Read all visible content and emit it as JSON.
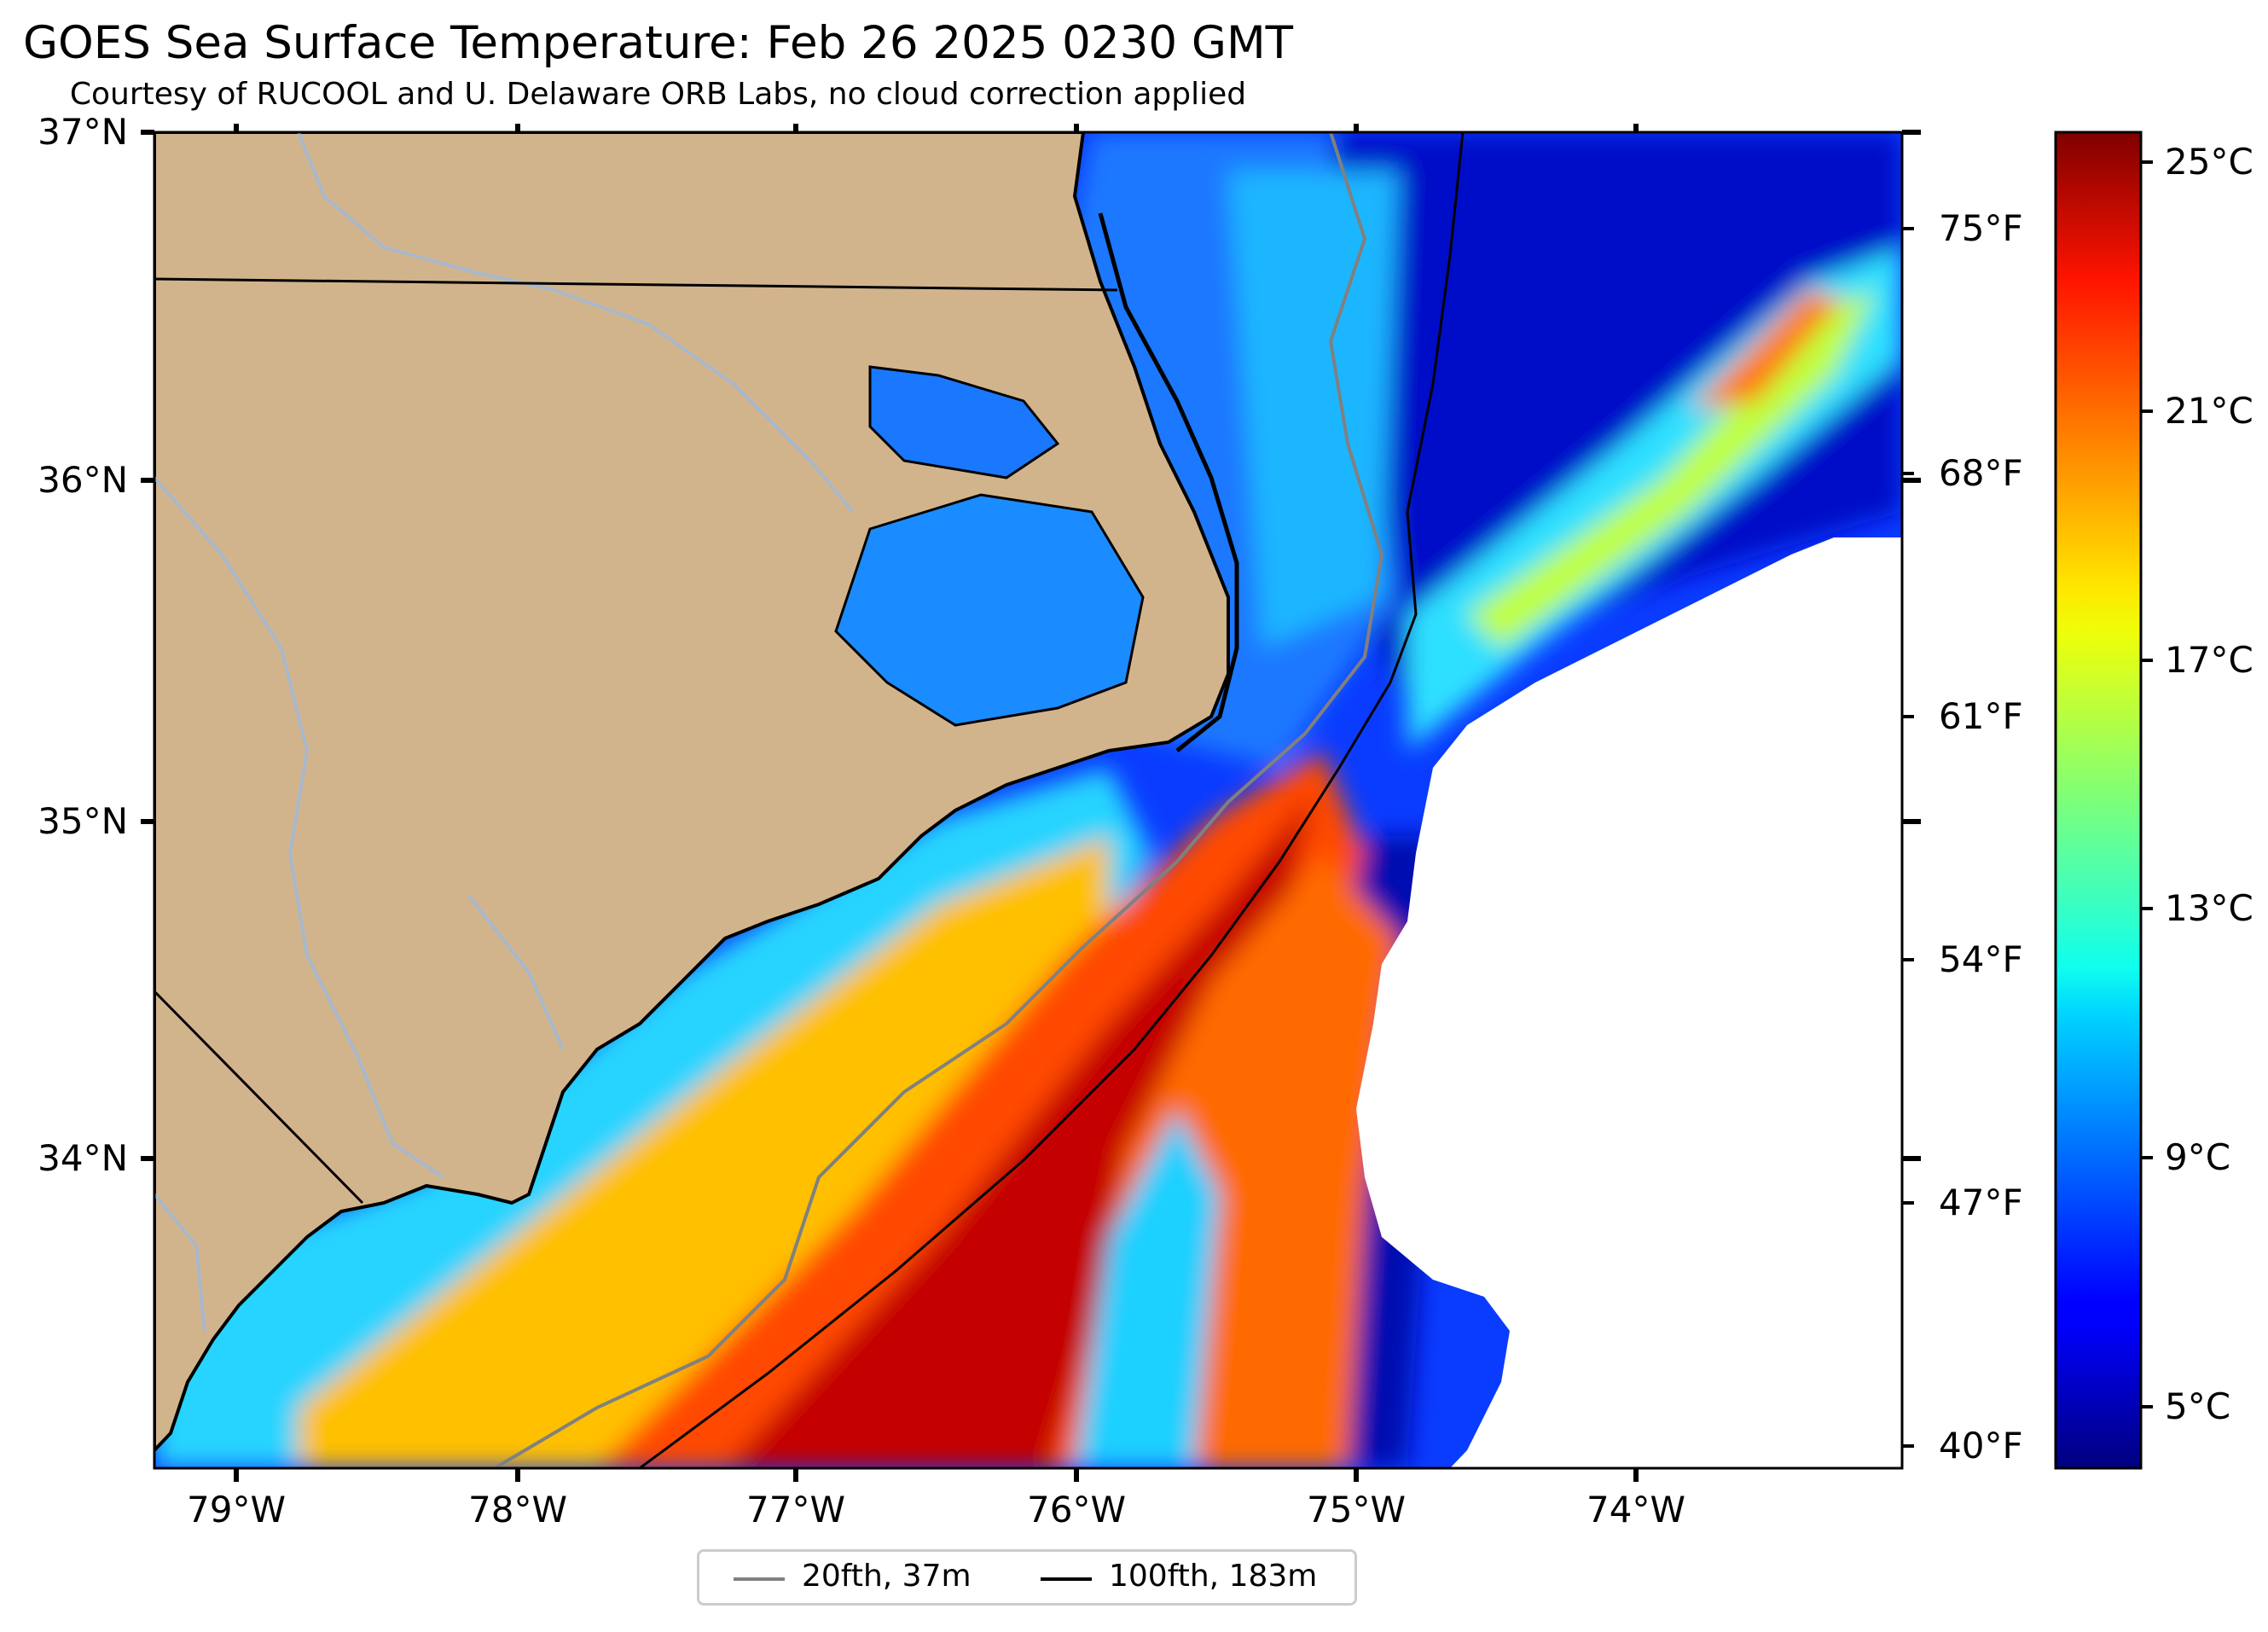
{
  "title": "GOES Sea Surface Temperature: Feb 26 2025 0230 GMT",
  "subtitle": "Courtesy of RUCOOL and U. Delaware ORB Labs, no cloud correction applied",
  "lat_labels": [
    "37°N",
    "36°N",
    "35°N",
    "34°N"
  ],
  "lon_labels": [
    "79°W",
    "78°W",
    "77°W",
    "76°W",
    "75°W",
    "74°W"
  ],
  "fahrenheit_labels": [
    "75°F",
    "68°F",
    "61°F",
    "54°F",
    "47°F",
    "40°F"
  ],
  "colorbar": {
    "labels": [
      "25°C",
      "21°C",
      "17°C",
      "13°C",
      "9°C",
      "5°C"
    ],
    "colormap": "jet",
    "range_celsius": [
      3.3,
      25.8
    ]
  },
  "legend": {
    "items": [
      {
        "label": "20fth, 37m",
        "color": "#808080"
      },
      {
        "label": "100fth, 183m",
        "color": "#000000"
      }
    ]
  },
  "colors": {
    "land": "#D2B48C",
    "rivers": "#A8B8CC",
    "no_data": "#FFFFFF",
    "coastline": "#000000"
  }
}
